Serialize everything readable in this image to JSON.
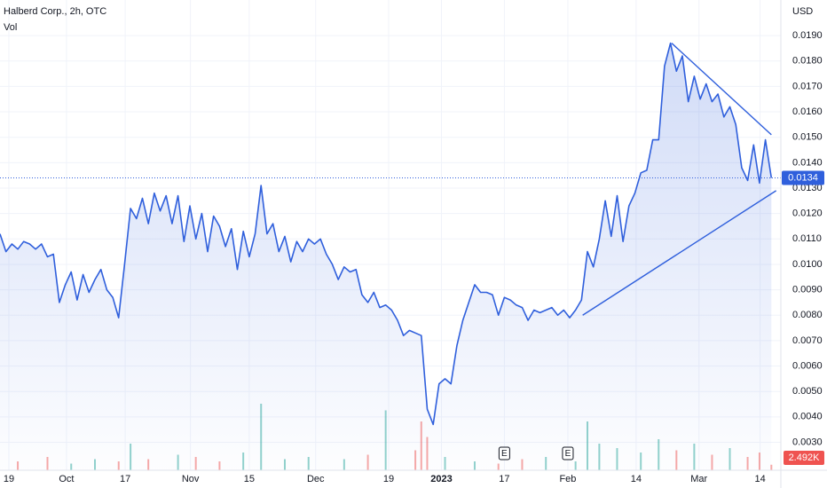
{
  "chart_data": {
    "type": "area",
    "title": "Halberd Corp., 2h, OTC",
    "volume_title": "Vol",
    "currency": "USD",
    "xlim": [
      0,
      131
    ],
    "ylim": [
      0.0019,
      0.0204
    ],
    "grid": true,
    "xticks": [
      {
        "value": 1.5,
        "label": "19"
      },
      {
        "value": 11.2,
        "label": "Oct"
      },
      {
        "value": 21.1,
        "label": "17"
      },
      {
        "value": 32.1,
        "label": "Nov"
      },
      {
        "value": 42,
        "label": "15"
      },
      {
        "value": 53.2,
        "label": "Dec"
      },
      {
        "value": 65.5,
        "label": "19"
      },
      {
        "value": 74.4,
        "label": "2023"
      },
      {
        "value": 85,
        "label": "17"
      },
      {
        "value": 95.7,
        "label": "Feb"
      },
      {
        "value": 107.2,
        "label": "14"
      },
      {
        "value": 117.8,
        "label": "Mar"
      },
      {
        "value": 128.1,
        "label": "14"
      }
    ],
    "yticks": [
      {
        "value": 0.003,
        "label": "0.0030"
      },
      {
        "value": 0.004,
        "label": "0.0040"
      },
      {
        "value": 0.005,
        "label": "0.0050"
      },
      {
        "value": 0.006,
        "label": "0.0060"
      },
      {
        "value": 0.007,
        "label": "0.0070"
      },
      {
        "value": 0.008,
        "label": "0.0080"
      },
      {
        "value": 0.009,
        "label": "0.0090"
      },
      {
        "value": 0.01,
        "label": "0.0100"
      },
      {
        "value": 0.011,
        "label": "0.0110"
      },
      {
        "value": 0.012,
        "label": "0.0120"
      },
      {
        "value": 0.013,
        "label": "0.0130"
      },
      {
        "value": 0.014,
        "label": "0.0140"
      },
      {
        "value": 0.015,
        "label": "0.0150"
      },
      {
        "value": 0.016,
        "label": "0.0160"
      },
      {
        "value": 0.017,
        "label": "0.0170"
      },
      {
        "value": 0.018,
        "label": "0.0180"
      },
      {
        "value": 0.019,
        "label": "0.0190"
      }
    ],
    "series": [
      {
        "color": "#2f5fdc",
        "values": [
          0.0112,
          0.0105,
          0.0108,
          0.0106,
          0.0109,
          0.0108,
          0.0106,
          0.0108,
          0.0103,
          0.0104,
          0.0085,
          0.0092,
          0.0097,
          0.0086,
          0.0096,
          0.0089,
          0.0094,
          0.0098,
          0.009,
          0.0087,
          0.0079,
          0.01,
          0.0122,
          0.0118,
          0.0126,
          0.0116,
          0.0128,
          0.0121,
          0.0127,
          0.0116,
          0.0127,
          0.0109,
          0.0123,
          0.011,
          0.012,
          0.0105,
          0.0119,
          0.0115,
          0.0107,
          0.0114,
          0.0098,
          0.0113,
          0.0103,
          0.0112,
          0.0131,
          0.0112,
          0.0116,
          0.0105,
          0.0111,
          0.0101,
          0.0109,
          0.0105,
          0.011,
          0.0108,
          0.011,
          0.0104,
          0.01,
          0.0094,
          0.0099,
          0.0097,
          0.0098,
          0.0088,
          0.0085,
          0.0089,
          0.0083,
          0.0084,
          0.0082,
          0.0078,
          0.0072,
          0.0074,
          0.0073,
          0.0072,
          0.0043,
          0.0037,
          0.0053,
          0.0055,
          0.0053,
          0.0068,
          0.0078,
          0.0085,
          0.0092,
          0.0089,
          0.0089,
          0.0088,
          0.008,
          0.0087,
          0.0086,
          0.0084,
          0.0083,
          0.0078,
          0.0082,
          0.0081,
          0.0082,
          0.0083,
          0.008,
          0.0082,
          0.0079,
          0.0082,
          0.0086,
          0.0105,
          0.0099,
          0.011,
          0.0125,
          0.0111,
          0.0127,
          0.0109,
          0.0123,
          0.0128,
          0.0136,
          0.0137,
          0.0149,
          0.0149,
          0.0178,
          0.0187,
          0.0176,
          0.0182,
          0.0164,
          0.0174,
          0.0165,
          0.0171,
          0.0164,
          0.0167,
          0.0158,
          0.0162,
          0.0155,
          0.0138,
          0.0133,
          0.0147,
          0.0132,
          0.0149,
          0.0134
        ]
      }
    ],
    "last_price": 0.0134,
    "trendlines": [
      {
        "x": [
          113.2,
          130
        ],
        "y": [
          0.0187,
          0.0151
        ],
        "color": "#2f5fdc"
      },
      {
        "x": [
          98.2,
          130.8
        ],
        "y": [
          0.008,
          0.0129
        ],
        "color": "#2f5fdc"
      }
    ],
    "volume": {
      "ylim": [
        0,
        60000
      ],
      "up_color": "#26a69a",
      "down_color": "#ef5350",
      "x": [
        3,
        8,
        12,
        16,
        20,
        22,
        25,
        30,
        33,
        37,
        41,
        44,
        48,
        52,
        58,
        62,
        65,
        70,
        71,
        72,
        75,
        80,
        84,
        88,
        92,
        97,
        99,
        101,
        104,
        108,
        111,
        114,
        117,
        120,
        123,
        126,
        128,
        130
      ],
      "values": [
        4000,
        6000,
        3000,
        5000,
        4000,
        12000,
        5000,
        7000,
        6000,
        4000,
        8000,
        30000,
        5000,
        6000,
        5000,
        7000,
        27000,
        9000,
        22000,
        15000,
        6000,
        4000,
        3000,
        5000,
        6000,
        4000,
        22000,
        12000,
        10000,
        8000,
        14000,
        9000,
        12000,
        7000,
        10000,
        6000,
        8000,
        2492
      ]
    },
    "last_volume": {
      "value": 2492,
      "label": "2.492K"
    },
    "events": [
      {
        "x": 85,
        "label": "E"
      },
      {
        "x": 95.7,
        "label": "E"
      }
    ]
  }
}
